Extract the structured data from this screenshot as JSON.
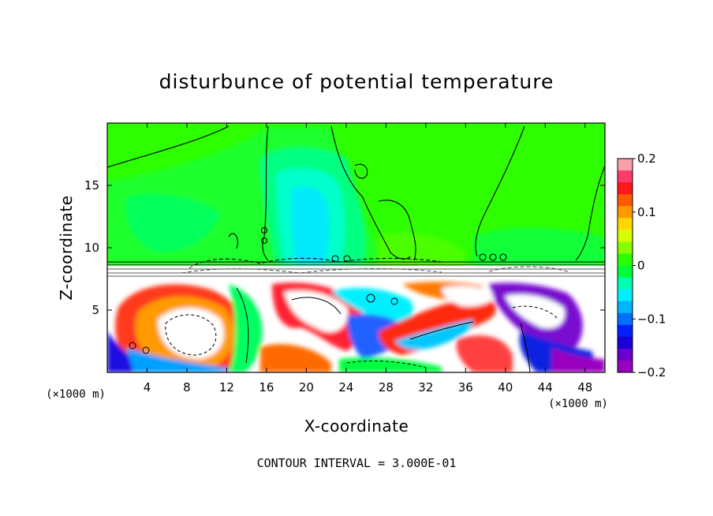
{
  "chart_data": {
    "type": "heatmap",
    "title": "disturbunce of potential temperature",
    "xlabel": "X-coordinate",
    "ylabel": "Z-coordinate",
    "x_unit_left": "(×1000 m)",
    "x_unit_right": "(×1000 m)",
    "x_ticks": [
      "4",
      "8",
      "12",
      "16",
      "20",
      "24",
      "28",
      "32",
      "36",
      "40",
      "44",
      "48"
    ],
    "x_tick_values": [
      4,
      8,
      12,
      16,
      20,
      24,
      28,
      32,
      36,
      40,
      44,
      48
    ],
    "y_ticks": [
      "5",
      "10",
      "15"
    ],
    "y_tick_values": [
      5,
      10,
      15
    ],
    "xlim": [
      0,
      50
    ],
    "ylim": [
      0,
      20
    ],
    "colorbar": {
      "ticks": [
        "0.2",
        "0.1",
        "0",
        "−0.1",
        "−0.2"
      ],
      "tick_values": [
        0.2,
        0.1,
        0,
        -0.1,
        -0.2
      ],
      "range": [
        -0.2,
        0.2
      ],
      "colors": [
        "#f8a0a8",
        "#ff3a6e",
        "#ff1818",
        "#ff5a00",
        "#ff9a00",
        "#ffd800",
        "#d8ff00",
        "#88ff00",
        "#2aff00",
        "#00ff38",
        "#00ffb0",
        "#00f0ff",
        "#00b4ff",
        "#0070ff",
        "#0020ff",
        "#1a00d8",
        "#6a00d0",
        "#9a00c0"
      ]
    },
    "contour_interval_note": "CONTOUR INTERVAL = 3.000E-01"
  }
}
